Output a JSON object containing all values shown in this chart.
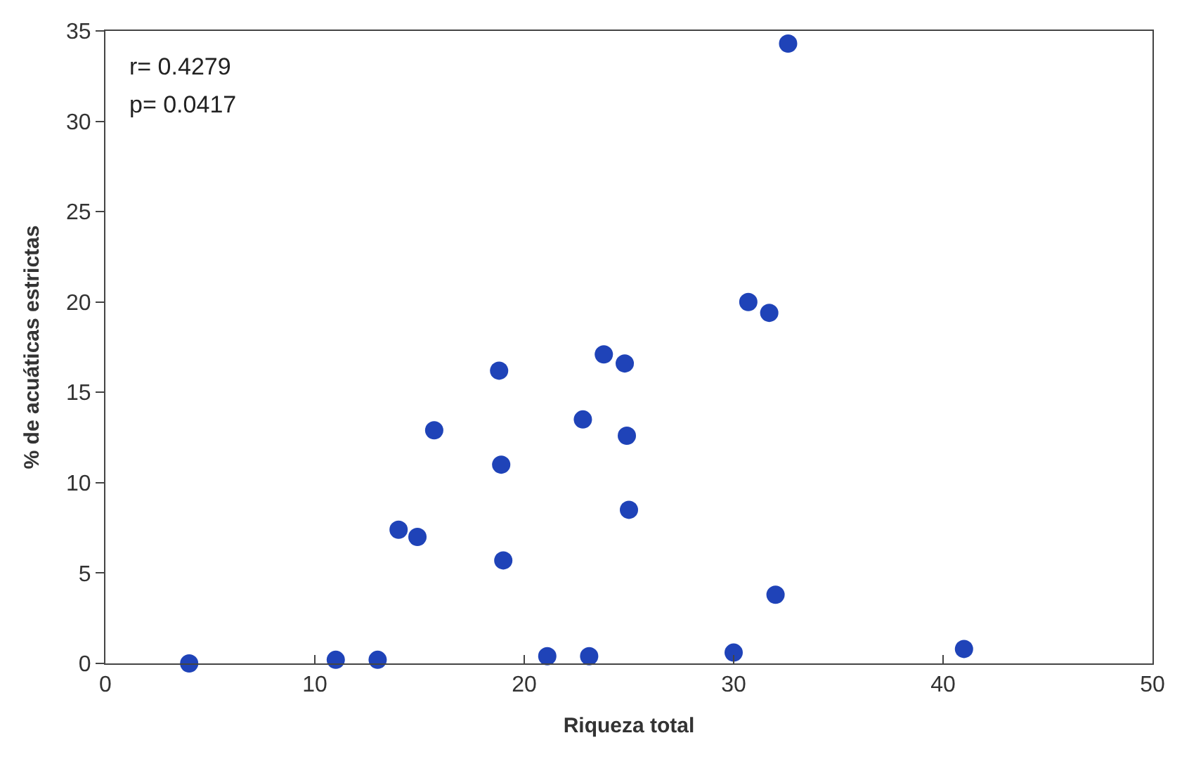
{
  "chart_data": {
    "type": "scatter",
    "xlabel": "Riqueza total",
    "ylabel": "% de acuáticas estrictas",
    "annotations": [
      "r= 0.4279",
      "p= 0.0417"
    ],
    "x": [
      4,
      11,
      13,
      14,
      14.9,
      15.7,
      18.8,
      18.9,
      19,
      21.1,
      22.8,
      23.1,
      23.8,
      24.8,
      24.9,
      25,
      30,
      30.7,
      31.7,
      32,
      32.6,
      41
    ],
    "series": [
      {
        "color": "#1f43b8",
        "values": [
          0,
          0.2,
          0.2,
          7.4,
          7.0,
          12.9,
          16.2,
          11.0,
          5.7,
          0.4,
          13.5,
          0.4,
          17.1,
          16.6,
          12.6,
          8.5,
          0.6,
          20.0,
          19.4,
          3.8,
          34.3,
          0.8
        ]
      }
    ],
    "xlim": [
      0,
      50
    ],
    "xticks": [
      0,
      10,
      20,
      30,
      40,
      50
    ],
    "ylim": [
      0,
      35
    ],
    "yticks": [
      0,
      5,
      10,
      15,
      20,
      25,
      30,
      35
    ],
    "legend": false,
    "marker": "circle"
  }
}
